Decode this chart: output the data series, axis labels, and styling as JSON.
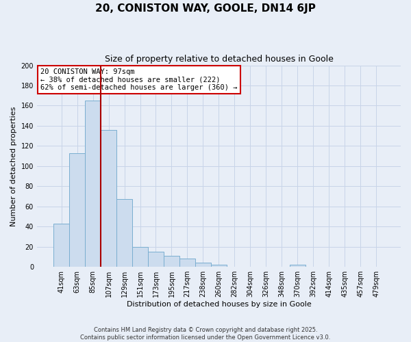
{
  "title": "20, CONISTON WAY, GOOLE, DN14 6JP",
  "subtitle": "Size of property relative to detached houses in Goole",
  "xlabel": "Distribution of detached houses by size in Goole",
  "ylabel": "Number of detached properties",
  "bar_labels": [
    "41sqm",
    "63sqm",
    "85sqm",
    "107sqm",
    "129sqm",
    "151sqm",
    "173sqm",
    "195sqm",
    "217sqm",
    "238sqm",
    "260sqm",
    "282sqm",
    "304sqm",
    "326sqm",
    "348sqm",
    "370sqm",
    "392sqm",
    "414sqm",
    "435sqm",
    "457sqm",
    "479sqm"
  ],
  "bar_values": [
    43,
    113,
    165,
    136,
    67,
    20,
    15,
    11,
    8,
    4,
    2,
    0,
    0,
    0,
    0,
    2,
    0,
    0,
    0,
    0,
    0
  ],
  "bar_color": "#ccdcee",
  "bar_edge_color": "#7aaed0",
  "bg_color": "#e8eef7",
  "grid_color": "#c8d4e8",
  "red_line_index": 3,
  "annotation_title": "20 CONISTON WAY: 97sqm",
  "annotation_line1": "← 38% of detached houses are smaller (222)",
  "annotation_line2": "62% of semi-detached houses are larger (360) →",
  "annotation_box_color": "#ffffff",
  "annotation_box_edge": "#cc0000",
  "red_line_color": "#aa0000",
  "footer1": "Contains HM Land Registry data © Crown copyright and database right 2025.",
  "footer2": "Contains public sector information licensed under the Open Government Licence v3.0.",
  "ylim": [
    0,
    200
  ],
  "yticks": [
    0,
    20,
    40,
    60,
    80,
    100,
    120,
    140,
    160,
    180,
    200
  ]
}
